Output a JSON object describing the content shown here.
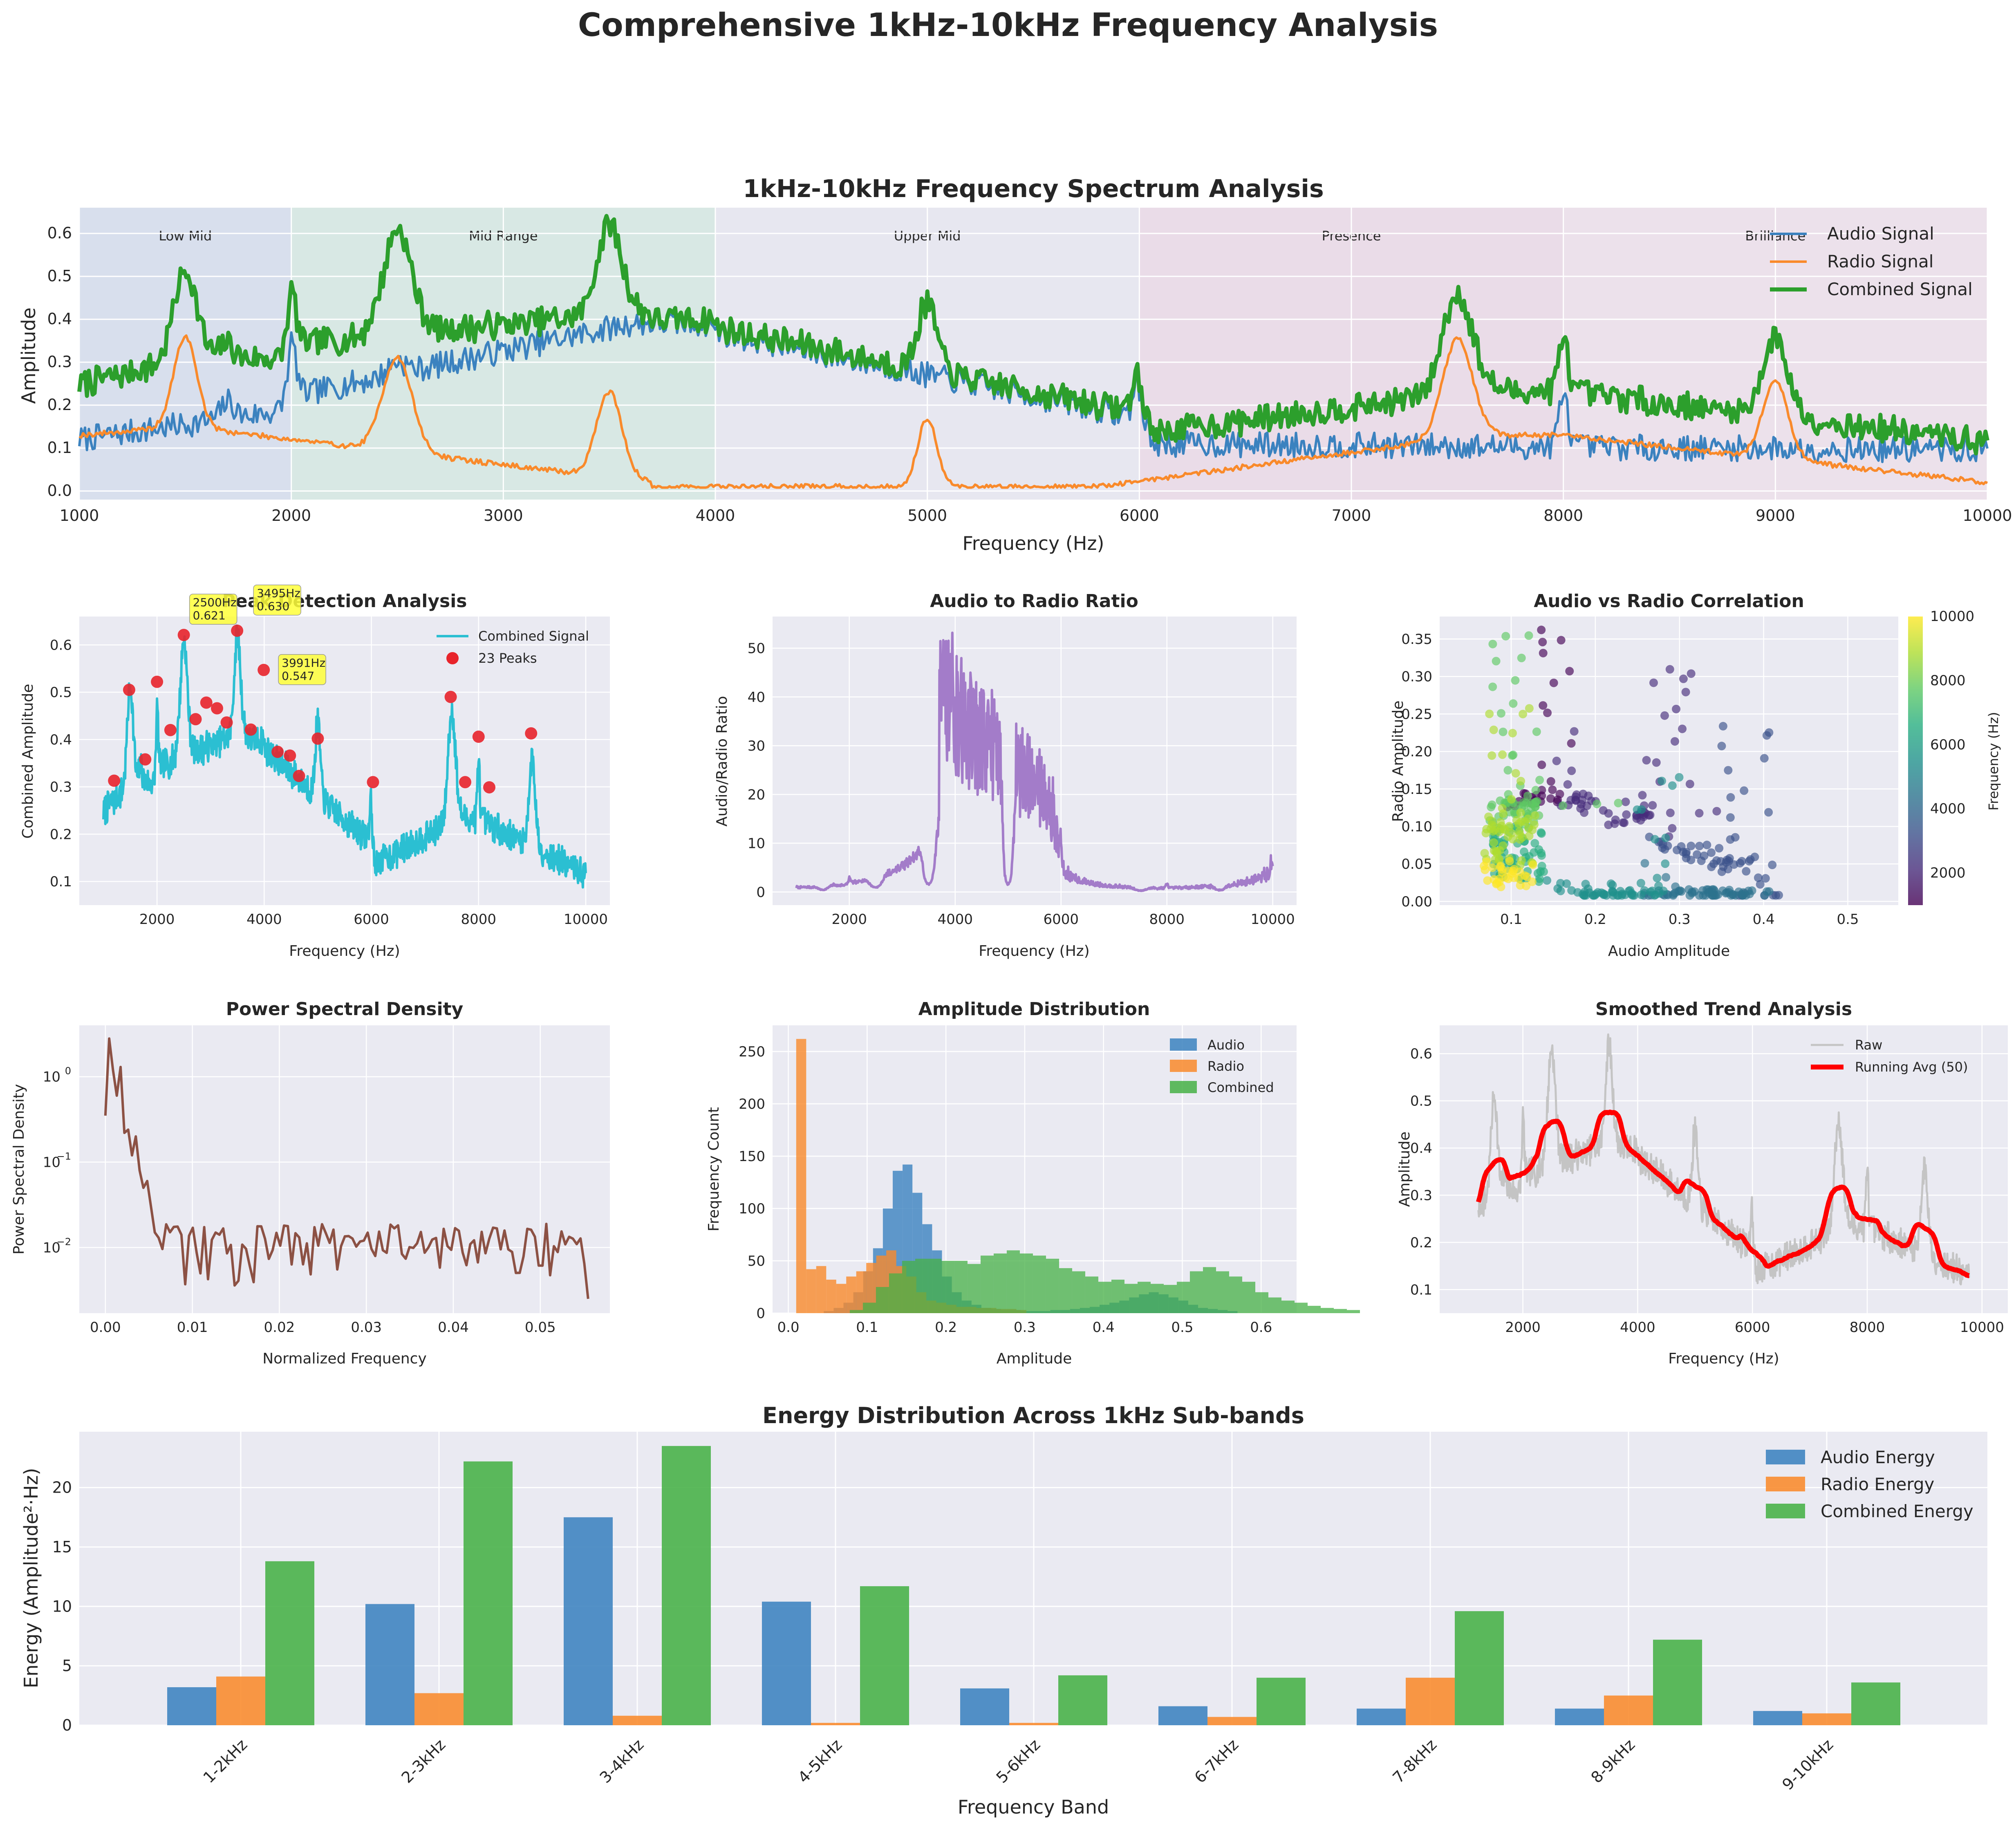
{
  "suptitle": "Comprehensive 1kHz-10kHz Frequency Analysis",
  "colors": {
    "audio": "#3b82bf",
    "radio": "#f98a2b",
    "combined": "#2c9f2c",
    "combined_light": "#45b045",
    "cyan": "#2bbfd2",
    "ratio": "#a37cc9",
    "psd": "#8c5144",
    "red": "#e8242b",
    "bg": "#eaeaf2",
    "grid": "#ffffff"
  },
  "spectrum": {
    "title": "1kHz-10kHz Frequency Spectrum Analysis",
    "xlabel": "Frequency (Hz)",
    "ylabel": "Amplitude",
    "xlim": [
      1000,
      10000
    ],
    "ylim": [
      -0.02,
      0.66
    ],
    "xticks": [
      "1000",
      "2000",
      "3000",
      "4000",
      "5000",
      "6000",
      "7000",
      "8000",
      "9000",
      "10000"
    ],
    "yticks": [
      "0.0",
      "0.1",
      "0.2",
      "0.3",
      "0.4",
      "0.5",
      "0.6"
    ],
    "bands": [
      {
        "name": "Low Mid",
        "from": 1000,
        "to": 2000,
        "color": "#c9d6ea"
      },
      {
        "name": "Mid Range",
        "from": 2000,
        "to": 4000,
        "color": "#c9e6d9"
      },
      {
        "name": "Upper Mid",
        "from": 4000,
        "to": 6000,
        "color": "#e4e4ee"
      },
      {
        "name": "Presence",
        "from": 6000,
        "to": 8000,
        "color": "#e9cfe0"
      },
      {
        "name": "Brilliance",
        "from": 8000,
        "to": 10000,
        "color": "#ecd8e6"
      }
    ],
    "legend": [
      "Audio Signal",
      "Radio Signal",
      "Combined Signal"
    ]
  },
  "peaks": {
    "title": "Peak Detection Analysis",
    "xlabel": "Frequency (Hz)",
    "ylabel": "Combined Amplitude",
    "xlim": [
      550,
      10450
    ],
    "ylim": [
      0.05,
      0.66
    ],
    "xticks": [
      "2000",
      "4000",
      "6000",
      "8000",
      "10000"
    ],
    "yticks": [
      "0.1",
      "0.2",
      "0.3",
      "0.4",
      "0.5",
      "0.6"
    ],
    "legend": [
      "Combined Signal",
      "23 Peaks"
    ],
    "points": [
      [
        1200,
        0.313
      ],
      [
        1480,
        0.505
      ],
      [
        1780,
        0.358
      ],
      [
        2000,
        0.522
      ],
      [
        2250,
        0.42
      ],
      [
        2500,
        0.621
      ],
      [
        2720,
        0.443
      ],
      [
        2920,
        0.478
      ],
      [
        3120,
        0.466
      ],
      [
        3300,
        0.436
      ],
      [
        3495,
        0.63
      ],
      [
        3750,
        0.421
      ],
      [
        3991,
        0.547
      ],
      [
        4250,
        0.374
      ],
      [
        4480,
        0.366
      ],
      [
        4650,
        0.323
      ],
      [
        5000,
        0.402
      ],
      [
        6030,
        0.31
      ],
      [
        7480,
        0.49
      ],
      [
        7750,
        0.31
      ],
      [
        8000,
        0.406
      ],
      [
        8200,
        0.299
      ],
      [
        8980,
        0.413
      ]
    ],
    "annotations": [
      {
        "x": 2500,
        "y": 0.621,
        "line1": "2500Hz",
        "line2": "0.621"
      },
      {
        "x": 3495,
        "y": 0.63,
        "line1": "3495Hz",
        "line2": "0.630"
      },
      {
        "x": 3991,
        "y": 0.547,
        "line1": "3991Hz",
        "line2": "0.547"
      }
    ]
  },
  "ratio": {
    "title": "Audio to Radio Ratio",
    "xlabel": "Frequency (Hz)",
    "ylabel": "Audio/Radio Ratio",
    "xlim": [
      550,
      10450
    ],
    "ylim": [
      -2.7,
      56.5
    ],
    "xticks": [
      "2000",
      "4000",
      "6000",
      "8000",
      "10000"
    ],
    "yticks": [
      "0",
      "10",
      "20",
      "30",
      "40",
      "50"
    ]
  },
  "scatter": {
    "title": "Audio vs Radio Correlation",
    "xlabel": "Audio Amplitude",
    "ylabel": "Radio Amplitude",
    "xlim": [
      0.015,
      0.56
    ],
    "ylim": [
      -0.005,
      0.38
    ],
    "xticks": [
      "0.1",
      "0.2",
      "0.3",
      "0.4",
      "0.5"
    ],
    "yticks": [
      "0.00",
      "0.05",
      "0.10",
      "0.15",
      "0.20",
      "0.25",
      "0.30",
      "0.35"
    ],
    "colorbar_label": "Frequency (Hz)",
    "colorbar_ticks": [
      "2000",
      "4000",
      "6000",
      "8000",
      "10000"
    ]
  },
  "psd": {
    "title": "Power Spectral Density",
    "xlabel": "Normalized Frequency",
    "ylabel": "Power Spectral Density",
    "xlim": [
      -0.003,
      0.058
    ],
    "ylog": [
      0.0017,
      4.0
    ],
    "xticks": [
      "0.00",
      "0.01",
      "0.02",
      "0.03",
      "0.04",
      "0.05"
    ],
    "ytick_bases": [
      "10",
      "10",
      "10"
    ],
    "ytick_exps": [
      "0",
      "−1",
      "−2"
    ]
  },
  "hist": {
    "title": "Amplitude Distribution",
    "xlabel": "Amplitude",
    "ylabel": "Frequency Count",
    "xlim": [
      -0.02,
      0.645
    ],
    "ylim": [
      0,
      275
    ],
    "xticks": [
      "0.0",
      "0.1",
      "0.2",
      "0.3",
      "0.4",
      "0.5",
      "0.6"
    ],
    "yticks": [
      "0",
      "50",
      "100",
      "150",
      "200",
      "250"
    ],
    "legend": [
      "Audio",
      "Radio",
      "Combined"
    ],
    "audio": {
      "start": 0.045,
      "width": 0.0125,
      "counts": [
        2,
        5,
        10,
        20,
        40,
        62,
        100,
        136,
        142,
        115,
        85,
        60,
        35,
        20,
        12,
        8,
        5,
        4,
        3,
        3,
        2,
        2,
        2,
        3,
        3,
        4,
        5,
        6,
        8,
        10,
        12,
        15,
        18,
        20,
        18,
        15,
        12,
        8,
        5,
        4,
        3,
        2
      ]
    },
    "radio": {
      "start": 0.01,
      "width": 0.0127,
      "counts": [
        262,
        42,
        45,
        32,
        28,
        35,
        40,
        48,
        55,
        60,
        45,
        35,
        20,
        12,
        10,
        8,
        6,
        6,
        5,
        5,
        4,
        4,
        3
      ]
    },
    "combined": {
      "start": 0.078,
      "width": 0.0166,
      "counts": [
        3,
        10,
        25,
        38,
        50,
        52,
        52,
        50,
        50,
        47,
        55,
        57,
        60,
        57,
        55,
        52,
        43,
        40,
        35,
        30,
        32,
        28,
        30,
        28,
        27,
        30,
        40,
        44,
        40,
        35,
        30,
        20,
        15,
        12,
        10,
        7,
        5,
        4,
        3
      ]
    }
  },
  "smooth": {
    "title": "Smoothed Trend Analysis",
    "xlabel": "Frequency (Hz)",
    "ylabel": "Amplitude",
    "xlim": [
      550,
      10450
    ],
    "ylim": [
      0.05,
      0.66
    ],
    "xticks": [
      "2000",
      "4000",
      "6000",
      "8000",
      "10000"
    ],
    "yticks": [
      "0.1",
      "0.2",
      "0.3",
      "0.4",
      "0.5",
      "0.6"
    ],
    "legend": [
      "Raw",
      "Running Avg (50)"
    ]
  },
  "energy": {
    "title": "Energy Distribution Across 1kHz Sub-bands",
    "xlabel": "Frequency Band",
    "ylabel": "Energy (Amplitude²·Hz)",
    "ylim": [
      0,
      24.7
    ],
    "yticks": [
      "0",
      "5",
      "10",
      "15",
      "20"
    ],
    "categories": [
      "1-2kHz",
      "2-3kHz",
      "3-4kHz",
      "4-5kHz",
      "5-6kHz",
      "6-7kHz",
      "7-8kHz",
      "8-9kHz",
      "9-10kHz"
    ],
    "legend": [
      "Audio Energy",
      "Radio Energy",
      "Combined Energy"
    ],
    "audio": [
      3.2,
      10.2,
      17.5,
      10.4,
      3.1,
      1.6,
      1.4,
      1.4,
      1.2
    ],
    "radio": [
      4.1,
      2.7,
      0.8,
      0.2,
      0.2,
      0.7,
      4.0,
      2.5,
      1.0
    ],
    "combined": [
      13.8,
      22.2,
      23.5,
      11.7,
      4.2,
      4.0,
      9.6,
      7.2,
      3.6
    ]
  }
}
